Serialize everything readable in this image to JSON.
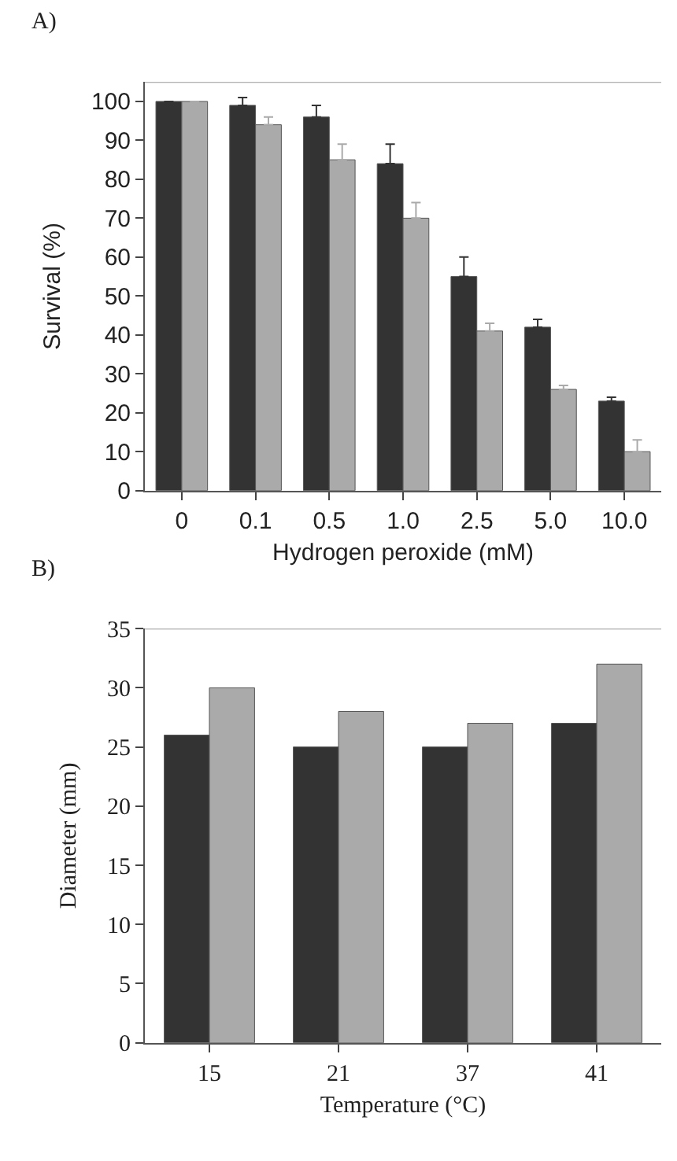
{
  "chart_data": [
    {
      "type": "bar",
      "title": "A)",
      "xlabel": "Hydrogen peroxide (mM)",
      "ylabel": "Survival (%)",
      "categories": [
        "0",
        "0.1",
        "0.5",
        "1.0",
        "2.5",
        "5.0",
        "10.0"
      ],
      "series": [
        {
          "color": "#333333",
          "values": [
            100,
            99,
            96,
            84,
            55,
            42,
            23
          ],
          "errors": [
            null,
            [
              99,
              101
            ],
            [
              96,
              99
            ],
            [
              84,
              89
            ],
            [
              55,
              60
            ],
            [
              42,
              44
            ],
            [
              23,
              24
            ]
          ]
        },
        {
          "color": "#aaaaaa",
          "values": [
            100,
            94,
            85,
            70,
            41,
            26,
            10
          ],
          "errors": [
            null,
            [
              94,
              96
            ],
            [
              85,
              89
            ],
            [
              70,
              74
            ],
            [
              41,
              43
            ],
            [
              26,
              27
            ],
            [
              10,
              13
            ]
          ]
        }
      ],
      "ylim": [
        0,
        105
      ],
      "yticks": [
        0,
        10,
        20,
        30,
        40,
        50,
        60,
        70,
        80,
        90,
        100
      ]
    },
    {
      "type": "bar",
      "title": "B)",
      "xlabel": "Temperature (°C)",
      "ylabel": "Diameter (mm)",
      "categories": [
        "15",
        "21",
        "37",
        "41"
      ],
      "series": [
        {
          "color": "#333333",
          "values": [
            26,
            25,
            25,
            27
          ]
        },
        {
          "color": "#aaaaaa",
          "values": [
            30,
            28,
            27,
            32
          ]
        }
      ],
      "ylim": [
        0,
        35
      ],
      "yticks": [
        0,
        5,
        10,
        15,
        20,
        25,
        30,
        35
      ]
    }
  ]
}
